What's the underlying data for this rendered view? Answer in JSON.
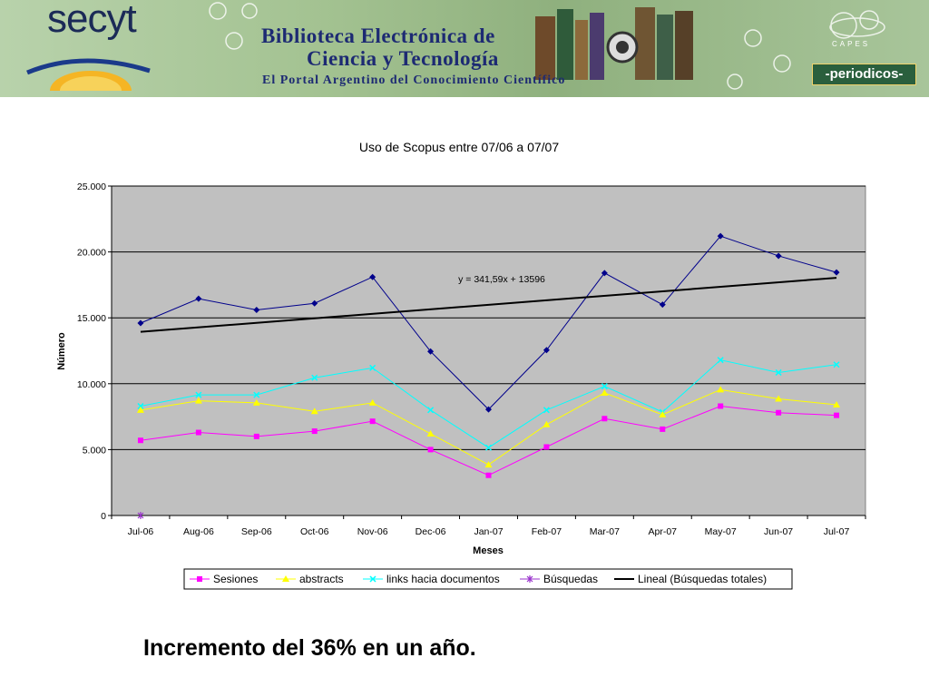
{
  "banner": {
    "logo": "secyt",
    "title_line1": "Biblioteca Electrónica de",
    "title_line2": "Ciencia y Tecnología",
    "subtitle": "El Portal Argentino del Conocimiento Científico",
    "partner_small": "CAPES",
    "partner": "-periodicos-",
    "colors": {
      "banner_bg": "#a9c69a",
      "title": "#1d2a73"
    }
  },
  "chart_data": {
    "type": "line",
    "title": "Uso de Scopus entre 07/06 a 07/07",
    "xlabel": "Meses",
    "ylabel": "Número",
    "categories": [
      "Jul-06",
      "Aug-06",
      "Sep-06",
      "Oct-06",
      "Nov-06",
      "Dec-06",
      "Jan-07",
      "Feb-07",
      "Mar-07",
      "Apr-07",
      "May-07",
      "Jun-07",
      "Jul-07"
    ],
    "ylim": [
      0,
      25000
    ],
    "yticks": [
      0,
      5000,
      10000,
      15000,
      20000,
      25000
    ],
    "ytick_labels": [
      "0",
      "5.000",
      "10.000",
      "15.000",
      "20.000",
      "25.000"
    ],
    "grid": true,
    "plot_background": "#c0c0c0",
    "legend_placement": "bottom",
    "series": [
      {
        "name": "Búsquedas totales",
        "in_legend": false,
        "color": "#00008b",
        "marker": "diamond",
        "values": [
          14600,
          16450,
          15600,
          16100,
          18100,
          12450,
          8050,
          12550,
          18400,
          16000,
          21200,
          19700,
          18450
        ]
      },
      {
        "name": "Sesiones",
        "color": "#ff00ff",
        "marker": "square",
        "values": [
          5700,
          6300,
          6000,
          6400,
          7150,
          5000,
          3050,
          5200,
          7350,
          6550,
          8300,
          7800,
          7600
        ]
      },
      {
        "name": "abstracts",
        "color": "#ffff00",
        "marker": "triangle",
        "values": [
          8000,
          8700,
          8550,
          7900,
          8550,
          6200,
          3850,
          6900,
          9300,
          7650,
          9550,
          8850,
          8400
        ]
      },
      {
        "name": "links hacia documentos",
        "color": "#00ffff",
        "marker": "x",
        "values": [
          8300,
          9150,
          9150,
          10450,
          11200,
          8000,
          5150,
          8000,
          9800,
          7850,
          11800,
          10850,
          11450
        ]
      },
      {
        "name": "Búsquedas",
        "color": "#9932cc",
        "marker": "star",
        "values": [
          0,
          null,
          null,
          null,
          null,
          null,
          null,
          null,
          null,
          null,
          null,
          null,
          null
        ]
      }
    ],
    "trendline": {
      "name": "Lineal (Búsquedas totales)",
      "color": "#000000",
      "slope": 341.59,
      "intercept": 13596,
      "equation_label": "y = 341,59x + 13596"
    }
  },
  "footer_note": "Incremento del 36% en un año."
}
